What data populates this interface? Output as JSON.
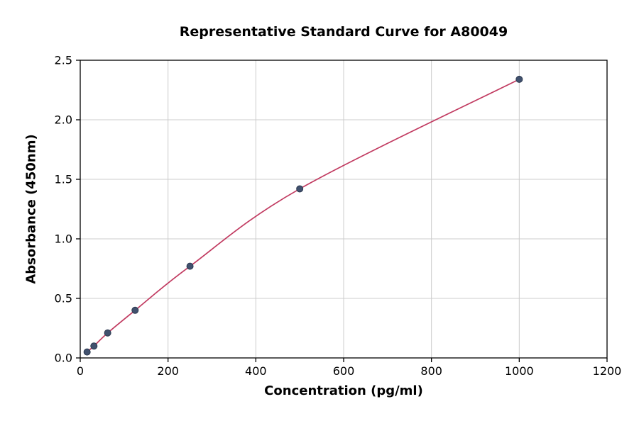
{
  "chart_data": {
    "type": "line",
    "title": "Representative Standard Curve for A80049",
    "xlabel": "Concentration (pg/ml)",
    "ylabel": "Absorbance (450nm)",
    "xlim": [
      0,
      1200
    ],
    "ylim": [
      0,
      2.5
    ],
    "xticks": [
      0,
      200,
      400,
      600,
      800,
      1000,
      1200
    ],
    "xtick_labels": [
      "0",
      "200",
      "400",
      "600",
      "800",
      "1000",
      "1200"
    ],
    "yticks": [
      0,
      0.5,
      1.0,
      1.5,
      2.0,
      2.5
    ],
    "ytick_labels": [
      "0.0",
      "0.5",
      "1.0",
      "1.5",
      "2.0",
      "2.5"
    ],
    "grid": true,
    "legend": "none",
    "series": [
      {
        "name": "standard-curve",
        "x": [
          15.6,
          31.25,
          62.5,
          125,
          250,
          500,
          1000
        ],
        "y": [
          0.05,
          0.1,
          0.21,
          0.4,
          0.77,
          1.42,
          2.34
        ]
      }
    ],
    "colors": {
      "curve": "#c13a60",
      "marker_fill": "#41516e",
      "marker_edge": "#2c3950",
      "grid": "#cccccc",
      "axis": "#000000",
      "background": "#ffffff"
    }
  }
}
